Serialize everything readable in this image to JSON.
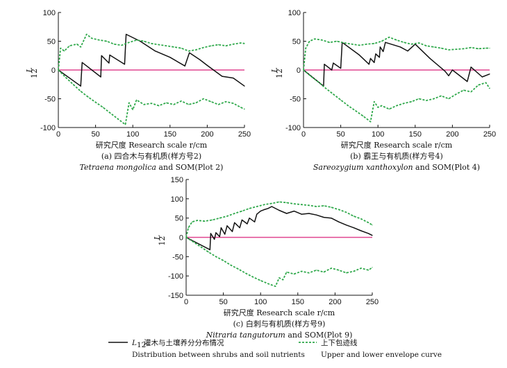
{
  "chart_data": [
    {
      "type": "line",
      "xlabel": "研究尺度 Research scale r/cm",
      "ylabel_main": "L",
      "ylabel_sub": "12",
      "caption_line1": "(a) 四合木与有机质(样方号2)",
      "caption_line2_italic": "Tetraena mongolica",
      "caption_line2_rest": " and SOM(Plot 2)",
      "xlim": [
        0,
        250
      ],
      "ylim": [
        -100,
        100
      ],
      "xticks": [
        "0",
        "50",
        "100",
        "150",
        "200",
        "250"
      ],
      "yticks": [
        "-100",
        "-50",
        "0",
        "50",
        "100"
      ],
      "zero_line": 0,
      "series": [
        {
          "role": "L12",
          "color": "#111111",
          "points": [
            [
              0,
              0
            ],
            [
              30,
              -28
            ],
            [
              32,
              13
            ],
            [
              57,
              -12
            ],
            [
              58,
              25
            ],
            [
              68,
              12
            ],
            [
              69,
              26
            ],
            [
              89,
              10
            ],
            [
              91,
              62
            ],
            [
              110,
              50
            ],
            [
              130,
              33
            ],
            [
              150,
              22
            ],
            [
              170,
              7
            ],
            [
              176,
              30
            ],
            [
              190,
              18
            ],
            [
              200,
              8
            ],
            [
              220,
              -11
            ],
            [
              235,
              -14
            ],
            [
              250,
              -28
            ]
          ]
        },
        {
          "role": "upper",
          "color": "#2ea84a",
          "points": [
            [
              0,
              0
            ],
            [
              3,
              38
            ],
            [
              8,
              33
            ],
            [
              15,
              42
            ],
            [
              25,
              45
            ],
            [
              30,
              40
            ],
            [
              38,
              62
            ],
            [
              45,
              55
            ],
            [
              55,
              52
            ],
            [
              65,
              50
            ],
            [
              75,
              45
            ],
            [
              85,
              43
            ],
            [
              95,
              48
            ],
            [
              105,
              52
            ],
            [
              115,
              50
            ],
            [
              125,
              46
            ],
            [
              135,
              44
            ],
            [
              145,
              42
            ],
            [
              155,
              40
            ],
            [
              165,
              38
            ],
            [
              175,
              33
            ],
            [
              185,
              35
            ],
            [
              195,
              39
            ],
            [
              205,
              42
            ],
            [
              215,
              44
            ],
            [
              225,
              42
            ],
            [
              235,
              45
            ],
            [
              245,
              47
            ],
            [
              250,
              46
            ]
          ]
        },
        {
          "role": "lower",
          "color": "#2ea84a",
          "points": [
            [
              0,
              0
            ],
            [
              10,
              -13
            ],
            [
              20,
              -25
            ],
            [
              30,
              -37
            ],
            [
              40,
              -47
            ],
            [
              50,
              -56
            ],
            [
              60,
              -65
            ],
            [
              70,
              -75
            ],
            [
              80,
              -85
            ],
            [
              90,
              -95
            ],
            [
              95,
              -57
            ],
            [
              100,
              -69
            ],
            [
              105,
              -52
            ],
            [
              115,
              -60
            ],
            [
              125,
              -58
            ],
            [
              135,
              -62
            ],
            [
              145,
              -57
            ],
            [
              155,
              -60
            ],
            [
              165,
              -54
            ],
            [
              175,
              -60
            ],
            [
              185,
              -57
            ],
            [
              195,
              -50
            ],
            [
              205,
              -55
            ],
            [
              215,
              -60
            ],
            [
              225,
              -55
            ],
            [
              235,
              -58
            ],
            [
              245,
              -65
            ],
            [
              250,
              -68
            ]
          ]
        }
      ]
    },
    {
      "type": "line",
      "xlabel": "研究尺度 Research scale r/cm",
      "ylabel_main": "L",
      "ylabel_sub": "12",
      "caption_line1": "(b) 霸王与有机质(样方号4)",
      "caption_line2_italic": "Sareozygium xanthoxylon",
      "caption_line2_rest": " and SOM(Plot 4)",
      "xlim": [
        0,
        250
      ],
      "ylim": [
        -100,
        100
      ],
      "xticks": [
        "0",
        "50",
        "100",
        "150",
        "200",
        "250"
      ],
      "yticks": [
        "-100",
        "-50",
        "0",
        "50",
        "100"
      ],
      "zero_line": 0,
      "series": [
        {
          "role": "L12",
          "color": "#111111",
          "points": [
            [
              0,
              0
            ],
            [
              27,
              -28
            ],
            [
              28,
              10
            ],
            [
              38,
              0
            ],
            [
              40,
              12
            ],
            [
              50,
              3
            ],
            [
              52,
              48
            ],
            [
              75,
              26
            ],
            [
              88,
              10
            ],
            [
              90,
              20
            ],
            [
              95,
              13
            ],
            [
              97,
              28
            ],
            [
              102,
              22
            ],
            [
              103,
              40
            ],
            [
              107,
              32
            ],
            [
              110,
              48
            ],
            [
              130,
              40
            ],
            [
              140,
              33
            ],
            [
              150,
              45
            ],
            [
              170,
              20
            ],
            [
              190,
              -2
            ],
            [
              195,
              -10
            ],
            [
              200,
              0
            ],
            [
              220,
              -20
            ],
            [
              225,
              5
            ],
            [
              240,
              -12
            ],
            [
              250,
              -7
            ]
          ]
        },
        {
          "role": "upper",
          "color": "#2ea84a",
          "points": [
            [
              0,
              0
            ],
            [
              3,
              38
            ],
            [
              8,
              50
            ],
            [
              15,
              54
            ],
            [
              25,
              52
            ],
            [
              35,
              48
            ],
            [
              45,
              50
            ],
            [
              55,
              47
            ],
            [
              65,
              45
            ],
            [
              75,
              43
            ],
            [
              85,
              45
            ],
            [
              95,
              46
            ],
            [
              105,
              50
            ],
            [
              115,
              57
            ],
            [
              125,
              52
            ],
            [
              135,
              48
            ],
            [
              145,
              45
            ],
            [
              155,
              47
            ],
            [
              165,
              42
            ],
            [
              175,
              40
            ],
            [
              185,
              38
            ],
            [
              195,
              35
            ],
            [
              205,
              36
            ],
            [
              215,
              37
            ],
            [
              225,
              39
            ],
            [
              235,
              37
            ],
            [
              245,
              38
            ],
            [
              250,
              38
            ]
          ]
        },
        {
          "role": "lower",
          "color": "#2ea84a",
          "points": [
            [
              0,
              0
            ],
            [
              10,
              -11
            ],
            [
              20,
              -21
            ],
            [
              30,
              -32
            ],
            [
              40,
              -42
            ],
            [
              50,
              -52
            ],
            [
              60,
              -62
            ],
            [
              70,
              -71
            ],
            [
              80,
              -80
            ],
            [
              90,
              -90
            ],
            [
              95,
              -55
            ],
            [
              100,
              -65
            ],
            [
              105,
              -62
            ],
            [
              115,
              -68
            ],
            [
              125,
              -62
            ],
            [
              135,
              -58
            ],
            [
              145,
              -55
            ],
            [
              155,
              -50
            ],
            [
              165,
              -53
            ],
            [
              175,
              -50
            ],
            [
              185,
              -45
            ],
            [
              195,
              -50
            ],
            [
              205,
              -42
            ],
            [
              215,
              -35
            ],
            [
              225,
              -38
            ],
            [
              235,
              -26
            ],
            [
              245,
              -22
            ],
            [
              250,
              -32
            ]
          ]
        }
      ]
    },
    {
      "type": "line",
      "xlabel": "研究尺度 Research scale r/cm",
      "ylabel_main": "L",
      "ylabel_sub": "12",
      "caption_line1": "(c) 白刺与有机质(样方号9)",
      "caption_line2_italic": "Nitraria tangutorum",
      "caption_line2_rest": " and SOM(Plot 9)",
      "xlim": [
        0,
        250
      ],
      "ylim": [
        -150,
        150
      ],
      "xticks": [
        "0",
        "50",
        "100",
        "150",
        "200",
        "250"
      ],
      "yticks": [
        "-150",
        "-100",
        "-50",
        "0",
        "50",
        "100",
        "150"
      ],
      "zero_line": 0,
      "series": [
        {
          "role": "L12",
          "color": "#111111",
          "points": [
            [
              0,
              0
            ],
            [
              32,
              -32
            ],
            [
              33,
              10
            ],
            [
              38,
              -5
            ],
            [
              40,
              12
            ],
            [
              45,
              2
            ],
            [
              47,
              25
            ],
            [
              52,
              8
            ],
            [
              55,
              30
            ],
            [
              62,
              15
            ],
            [
              65,
              38
            ],
            [
              72,
              25
            ],
            [
              75,
              45
            ],
            [
              82,
              35
            ],
            [
              85,
              50
            ],
            [
              92,
              40
            ],
            [
              95,
              60
            ],
            [
              100,
              68
            ],
            [
              105,
              72
            ],
            [
              110,
              75
            ],
            [
              115,
              80
            ],
            [
              125,
              70
            ],
            [
              135,
              62
            ],
            [
              145,
              68
            ],
            [
              155,
              60
            ],
            [
              165,
              62
            ],
            [
              175,
              58
            ],
            [
              185,
              52
            ],
            [
              195,
              50
            ],
            [
              205,
              40
            ],
            [
              215,
              32
            ],
            [
              225,
              25
            ],
            [
              235,
              17
            ],
            [
              245,
              10
            ],
            [
              250,
              5
            ]
          ]
        },
        {
          "role": "upper",
          "color": "#2ea84a",
          "points": [
            [
              0,
              0
            ],
            [
              3,
              25
            ],
            [
              8,
              40
            ],
            [
              15,
              44
            ],
            [
              25,
              42
            ],
            [
              35,
              45
            ],
            [
              45,
              50
            ],
            [
              55,
              55
            ],
            [
              65,
              62
            ],
            [
              75,
              68
            ],
            [
              85,
              75
            ],
            [
              95,
              80
            ],
            [
              105,
              85
            ],
            [
              115,
              88
            ],
            [
              125,
              92
            ],
            [
              135,
              90
            ],
            [
              145,
              87
            ],
            [
              155,
              85
            ],
            [
              165,
              83
            ],
            [
              175,
              80
            ],
            [
              185,
              82
            ],
            [
              195,
              78
            ],
            [
              205,
              72
            ],
            [
              215,
              65
            ],
            [
              225,
              55
            ],
            [
              235,
              48
            ],
            [
              245,
              38
            ],
            [
              250,
              32
            ]
          ]
        },
        {
          "role": "lower",
          "color": "#2ea84a",
          "points": [
            [
              0,
              0
            ],
            [
              10,
              -12
            ],
            [
              20,
              -25
            ],
            [
              30,
              -38
            ],
            [
              40,
              -50
            ],
            [
              50,
              -60
            ],
            [
              60,
              -72
            ],
            [
              70,
              -82
            ],
            [
              80,
              -93
            ],
            [
              90,
              -103
            ],
            [
              100,
              -112
            ],
            [
              110,
              -120
            ],
            [
              120,
              -127
            ],
            [
              125,
              -105
            ],
            [
              130,
              -110
            ],
            [
              135,
              -90
            ],
            [
              145,
              -95
            ],
            [
              155,
              -88
            ],
            [
              165,
              -92
            ],
            [
              175,
              -85
            ],
            [
              185,
              -90
            ],
            [
              195,
              -80
            ],
            [
              205,
              -85
            ],
            [
              215,
              -92
            ],
            [
              225,
              -88
            ],
            [
              235,
              -80
            ],
            [
              245,
              -85
            ],
            [
              250,
              -78
            ]
          ]
        }
      ]
    }
  ],
  "legend": {
    "line1_main": "L",
    "line1_sub": "12",
    "line1_text": "灌木与土壤养分分布情况",
    "line1_en": "Distribution between shrubs and soil nutrients",
    "line2_text": "上下包迹线",
    "line2_en": "Upper and lower envelope curve"
  }
}
